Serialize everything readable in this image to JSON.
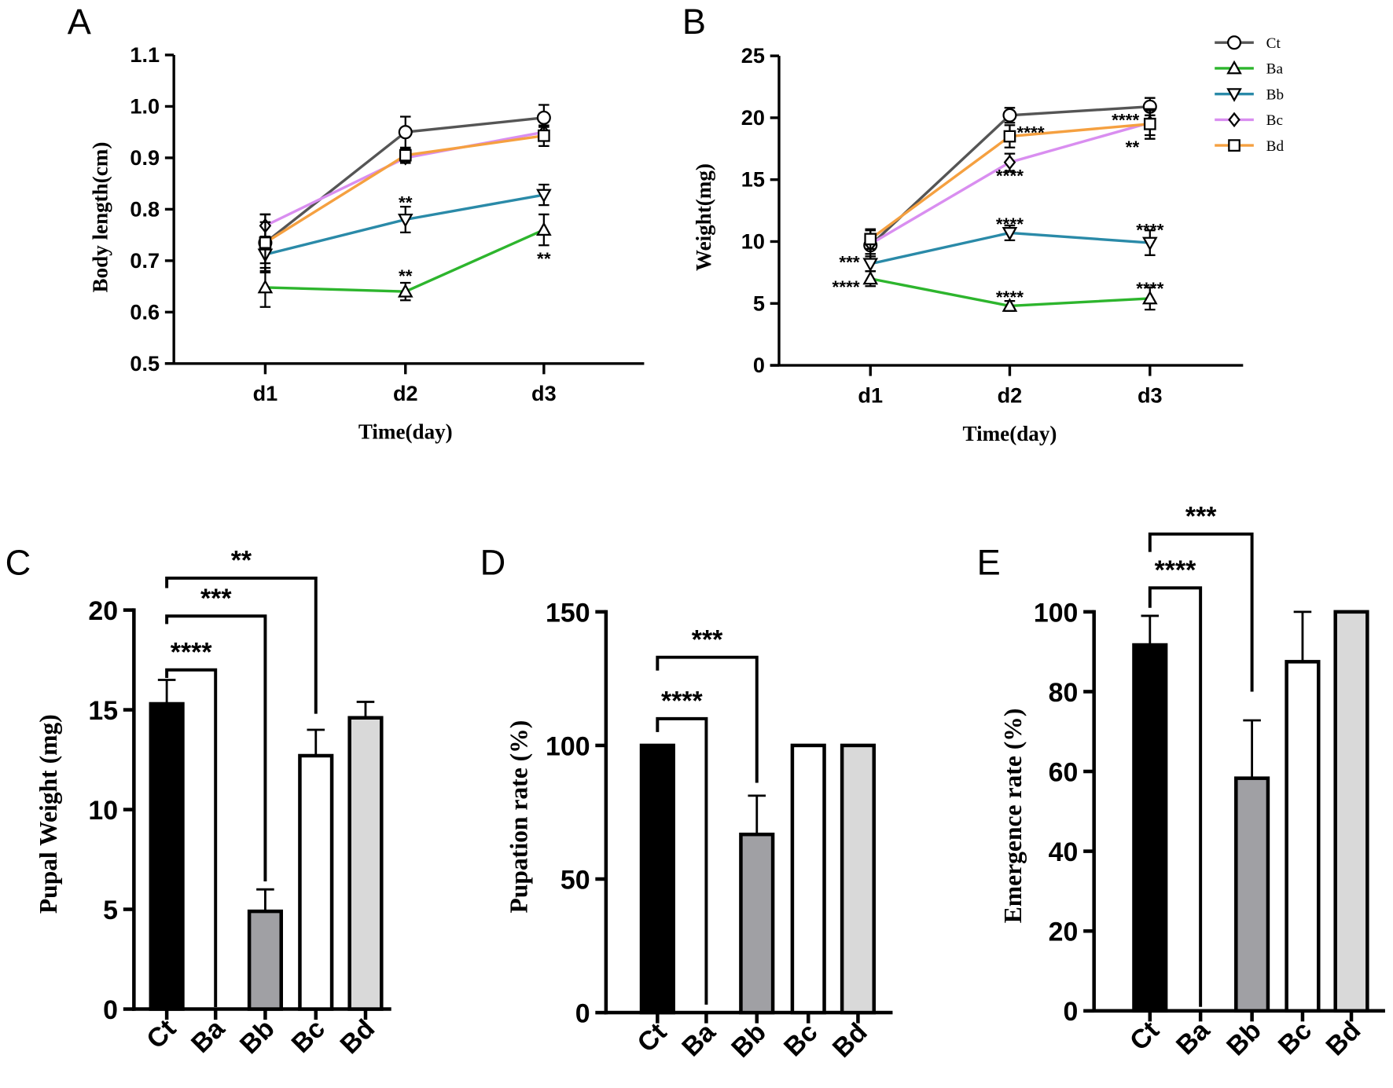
{
  "panel_labels": [
    "A",
    "B",
    "C",
    "D",
    "E"
  ],
  "series_styles": [
    {
      "name": "Ct",
      "color": "#555555",
      "marker": "circle"
    },
    {
      "name": "Ba",
      "color": "#2db52d",
      "marker": "triangle-up"
    },
    {
      "name": "Bb",
      "color": "#2a8aa8",
      "marker": "triangle-down"
    },
    {
      "name": "Bc",
      "color": "#d98ef0",
      "marker": "diamond"
    },
    {
      "name": "Bd",
      "color": "#f5a040",
      "marker": "square"
    }
  ],
  "chart_data": [
    {
      "id": "A",
      "type": "line",
      "xlabel": "Time(day)",
      "ylabel": "Body length(cm)",
      "categories": [
        "d1",
        "d2",
        "d3"
      ],
      "ylim": [
        0.5,
        1.1
      ],
      "yticks": [
        "0.5",
        "0.6",
        "0.7",
        "0.8",
        "0.9",
        "1.0",
        "1.1"
      ],
      "series": [
        {
          "name": "Ct",
          "values": [
            0.735,
            0.95,
            0.978
          ],
          "errors": [
            0.055,
            0.03,
            0.025
          ]
        },
        {
          "name": "Ba",
          "values": [
            0.648,
            0.64,
            0.76
          ],
          "errors": [
            0.038,
            0.017,
            0.03
          ]
        },
        {
          "name": "Bb",
          "values": [
            0.712,
            0.78,
            0.828
          ],
          "errors": [
            0.035,
            0.025,
            0.02
          ]
        },
        {
          "name": "Bc",
          "values": [
            0.768,
            0.9,
            0.95
          ],
          "errors": [
            0.022,
            0.01,
            0.01
          ]
        },
        {
          "name": "Bd",
          "values": [
            0.735,
            0.905,
            0.943
          ],
          "errors": [
            0.04,
            0.012,
            0.02
          ]
        }
      ],
      "annotations": [
        {
          "text": "**",
          "x": 1,
          "y": 0.815,
          "anchor": "center"
        },
        {
          "text": "**",
          "x": 1,
          "y": 0.672,
          "anchor": "center"
        },
        {
          "text": "**",
          "x": 2,
          "y": 0.706,
          "anchor": "center"
        }
      ]
    },
    {
      "id": "B",
      "type": "line",
      "xlabel": "Time(day)",
      "ylabel": "Weight(mg)",
      "categories": [
        "d1",
        "d2",
        "d3"
      ],
      "ylim": [
        0,
        25
      ],
      "yticks": [
        "0",
        "5",
        "10",
        "15",
        "20",
        "25"
      ],
      "legend_position": "top-right",
      "series": [
        {
          "name": "Ct",
          "values": [
            9.7,
            20.2,
            20.9
          ],
          "errors": [
            1.2,
            0.6,
            0.7
          ]
        },
        {
          "name": "Ba",
          "values": [
            7.0,
            4.8,
            5.4
          ],
          "errors": [
            0.6,
            0.4,
            0.9
          ]
        },
        {
          "name": "Bb",
          "values": [
            8.2,
            10.7,
            9.9
          ],
          "errors": [
            0.6,
            0.6,
            1.0
          ]
        },
        {
          "name": "Bc",
          "values": [
            9.8,
            16.4,
            19.6
          ],
          "errors": [
            0.8,
            0.7,
            1.0
          ]
        },
        {
          "name": "Bd",
          "values": [
            10.2,
            18.5,
            19.5
          ],
          "errors": [
            0.8,
            0.9,
            1.2
          ]
        }
      ],
      "annotations": [
        {
          "text": "***",
          "x": 0,
          "y": 8.4,
          "anchor": "left"
        },
        {
          "text": "****",
          "x": 0,
          "y": 6.4,
          "anchor": "left"
        },
        {
          "text": "****",
          "x": 1,
          "y": 18.9,
          "anchor": "right"
        },
        {
          "text": "****",
          "x": 1,
          "y": 15.4,
          "anchor": "center"
        },
        {
          "text": "****",
          "x": 1,
          "y": 11.5,
          "anchor": "center"
        },
        {
          "text": "****",
          "x": 1,
          "y": 5.6,
          "anchor": "center"
        },
        {
          "text": "****",
          "x": 2,
          "y": 19.9,
          "anchor": "left"
        },
        {
          "text": "**",
          "x": 2,
          "y": 17.7,
          "anchor": "left"
        },
        {
          "text": "****",
          "x": 2,
          "y": 11.0,
          "anchor": "center"
        },
        {
          "text": "****",
          "x": 2,
          "y": 6.3,
          "anchor": "center"
        }
      ]
    },
    {
      "id": "C",
      "type": "bar",
      "ylabel": "Pupal Weight (mg)",
      "categories": [
        "Ct",
        "Ba",
        "Bb",
        "Bc",
        "Bd"
      ],
      "values": [
        15.3,
        0,
        4.9,
        12.7,
        14.6
      ],
      "errors": [
        1.2,
        0,
        1.1,
        1.3,
        0.8
      ],
      "ylim": [
        0,
        20
      ],
      "yticks": [
        "0",
        "5",
        "10",
        "15",
        "20"
      ],
      "brackets": [
        {
          "from": 0,
          "to": 1,
          "text": "****",
          "level": 17.0,
          "left_end": 16.6,
          "right_end": 0.1
        },
        {
          "from": 0,
          "to": 2,
          "text": "***",
          "level": 19.7,
          "left_end": 19.3,
          "right_end": 6.4
        },
        {
          "from": 0,
          "to": 3,
          "text": "**",
          "level": 21.6,
          "left_end": 21.1,
          "right_end": 14.8
        }
      ]
    },
    {
      "id": "D",
      "type": "bar",
      "ylabel": "Pupation rate (%)",
      "categories": [
        "Ct",
        "Ba",
        "Bb",
        "Bc",
        "Bd"
      ],
      "values": [
        100,
        0,
        66.7,
        100,
        100
      ],
      "errors": [
        0,
        0,
        14.5,
        0,
        0
      ],
      "ylim": [
        0,
        150
      ],
      "yticks": [
        "0",
        "50",
        "100",
        "150"
      ],
      "brackets": [
        {
          "from": 0,
          "to": 1,
          "text": "****",
          "level": 110,
          "left_end": 105,
          "right_end": 3
        },
        {
          "from": 0,
          "to": 2,
          "text": "***",
          "level": 133,
          "left_end": 128,
          "right_end": 86
        }
      ]
    },
    {
      "id": "E",
      "type": "bar",
      "ylabel": "Emergence rate (%)",
      "categories": [
        "Ct",
        "Ba",
        "Bb",
        "Bc",
        "Bd"
      ],
      "values": [
        91.7,
        0,
        58.3,
        87.5,
        100
      ],
      "errors": [
        7.3,
        0,
        14.5,
        12.5,
        0
      ],
      "ylim": [
        0,
        100
      ],
      "yticks": [
        "0",
        "20",
        "40",
        "60",
        "80",
        "100"
      ],
      "brackets": [
        {
          "from": 0,
          "to": 1,
          "text": "****",
          "level": 106,
          "left_end": 101,
          "right_end": 1
        },
        {
          "from": 0,
          "to": 2,
          "text": "***",
          "level": 119.5,
          "left_end": 115,
          "right_end": 80
        }
      ]
    }
  ],
  "bar_colors": [
    "#000000",
    "#ffffff",
    "#a0a0a4",
    "#ffffff",
    "#d9d9d9"
  ]
}
